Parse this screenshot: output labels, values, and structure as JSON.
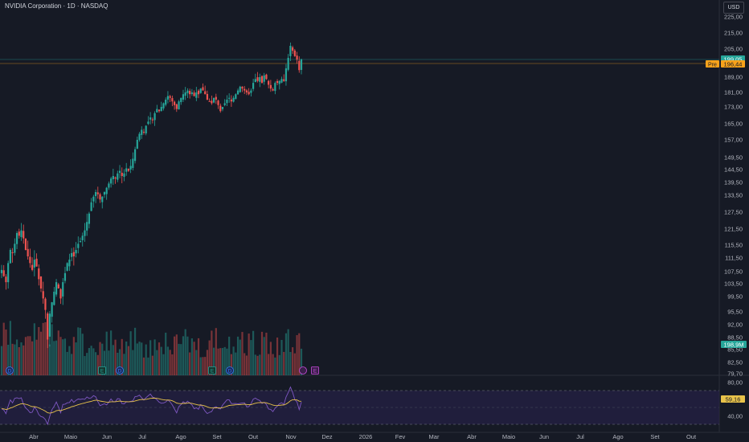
{
  "header": {
    "title": "NVIDIA Corporation · 1D · NASDAQ",
    "currency": "USD"
  },
  "price_scale": {
    "ticks": [
      "225,00",
      "215,00",
      "205,00",
      "189,00",
      "181,00",
      "173,00",
      "165,00",
      "157,00",
      "149,50",
      "144,50",
      "139,50",
      "133,50",
      "127,50",
      "121,50",
      "115,50",
      "111,50",
      "107,50",
      "103,50",
      "99,50",
      "95,50",
      "92,00",
      "88,50",
      "85,50",
      "82,50",
      "79,70"
    ],
    "last_price_label": "199,05",
    "pre_badge": "Pre",
    "pre_price_label": "196,44",
    "volume_label": "198,9M"
  },
  "rsi_scale": {
    "ticks": [
      "80,00",
      "40,00"
    ],
    "value_label": "59,16"
  },
  "time_axis": {
    "labels": [
      "Abr",
      "Maio",
      "Jun",
      "Jul",
      "Ago",
      "Set",
      "Out",
      "Nov",
      "Dez",
      "2026",
      "Fev",
      "Mar",
      "Abr",
      "Maio",
      "Jun",
      "Jul",
      "Ago",
      "Set",
      "Out"
    ]
  },
  "markers": [
    {
      "letter": "D",
      "kind": "dividend"
    },
    {
      "letter": "E",
      "kind": "earnings"
    },
    {
      "letter": "D",
      "kind": "dividend"
    },
    {
      "letter": "E",
      "kind": "earnings"
    },
    {
      "letter": "D",
      "kind": "dividend"
    },
    {
      "letter": "E",
      "kind": "earnings"
    }
  ],
  "colors": {
    "up": "#26a69a",
    "down": "#ef5350",
    "background": "#161a25",
    "rsi_line": "#7e57c2",
    "rsi_ma": "#e8c34a",
    "pre": "#f7a21b"
  },
  "chart_data": {
    "type": "candlestick",
    "title": "NVIDIA Corporation · 1D · NASDAQ",
    "ylim": [
      79.7,
      225
    ],
    "rsi_band": [
      30,
      70
    ],
    "series": [
      {
        "name": "Price",
        "closes": [
          108,
          106,
          104,
          110,
          114,
          113,
          116,
          120,
          119,
          121,
          118,
          114,
          112,
          110,
          108,
          111,
          109,
          105,
          102,
          99,
          96,
          88,
          95,
          98,
          101,
          104,
          102,
          99,
          104,
          107,
          110,
          111,
          113,
          112,
          114,
          116,
          117,
          119,
          121,
          124,
          127,
          131,
          133,
          135,
          134,
          132,
          133,
          135,
          137,
          139,
          141,
          142,
          141,
          143,
          144,
          142,
          143,
          145,
          144,
          146,
          149,
          153,
          157,
          160,
          162,
          161,
          164,
          166,
          168,
          167,
          170,
          172,
          171,
          173,
          175,
          177,
          179,
          178,
          176,
          174,
          172,
          176,
          178,
          180,
          181,
          182,
          180,
          181,
          179,
          181,
          180,
          183,
          182,
          180,
          177,
          176,
          175,
          178,
          177,
          174,
          171,
          173,
          175,
          177,
          178,
          176,
          178,
          180,
          182,
          184,
          183,
          182,
          181,
          180,
          182,
          186,
          188,
          187,
          189,
          186,
          190,
          188,
          185,
          183,
          182,
          186,
          186,
          187,
          188,
          187,
          194,
          200,
          207,
          204,
          201,
          199,
          193,
          199.05
        ]
      }
    ]
  }
}
